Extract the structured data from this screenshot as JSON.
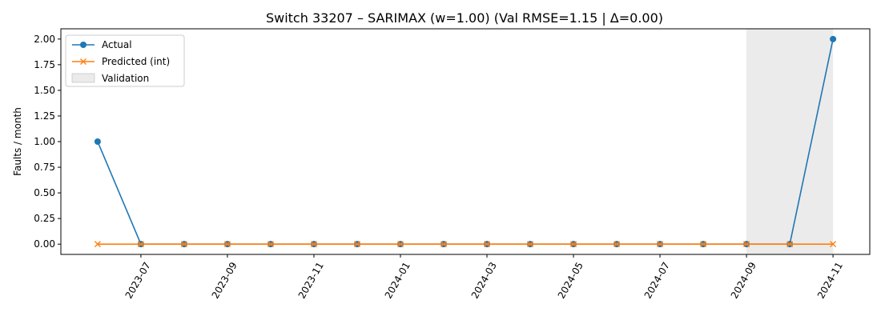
{
  "chart_data": {
    "type": "line",
    "title": "Switch 33207 – SARIMAX (w=1.00) (Val RMSE=1.15 | Δ=0.00)",
    "xlabel": "",
    "ylabel": "Faults / month",
    "x": [
      "2023-06",
      "2023-07",
      "2023-08",
      "2023-09",
      "2023-10",
      "2023-11",
      "2023-12",
      "2024-01",
      "2024-02",
      "2024-03",
      "2024-04",
      "2024-05",
      "2024-06",
      "2024-07",
      "2024-08",
      "2024-09",
      "2024-10",
      "2024-11"
    ],
    "x_ticks": [
      "2023-07",
      "2023-09",
      "2023-11",
      "2024-01",
      "2024-03",
      "2024-05",
      "2024-07",
      "2024-09",
      "2024-11"
    ],
    "y_ticks": [
      "0.00",
      "0.25",
      "0.50",
      "0.75",
      "1.00",
      "1.25",
      "1.50",
      "1.75",
      "2.00"
    ],
    "ylim": [
      -0.1,
      2.1
    ],
    "series": [
      {
        "name": "Actual",
        "color": "#1f77b4",
        "marker": "circle",
        "values": [
          1,
          0,
          0,
          0,
          0,
          0,
          0,
          0,
          0,
          0,
          0,
          0,
          0,
          0,
          0,
          0,
          0,
          2
        ]
      },
      {
        "name": "Predicted (int)",
        "color": "#ff7f0e",
        "marker": "x",
        "values": [
          0,
          0,
          0,
          0,
          0,
          0,
          0,
          0,
          0,
          0,
          0,
          0,
          0,
          0,
          0,
          0,
          0,
          0
        ]
      }
    ],
    "shaded_region": {
      "name": "Validation",
      "from": "2024-09",
      "to": "2024-11",
      "color": "#d3d3d3"
    },
    "legend": {
      "placement": "top-left"
    },
    "grid": false
  }
}
